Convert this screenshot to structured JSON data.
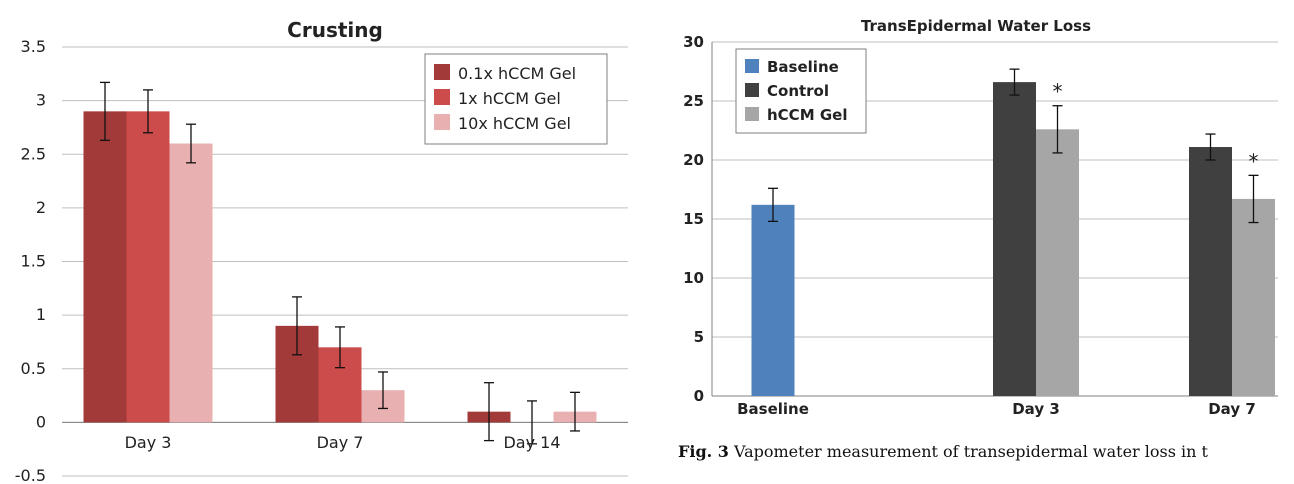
{
  "chart_data": [
    {
      "type": "bar",
      "title": "Crusting",
      "categories": [
        "Day 3",
        "Day 7",
        "Day 14"
      ],
      "ylim": [
        -0.5,
        3.5
      ],
      "yticks": [
        "3.5",
        "3",
        "2.5",
        "2",
        "1.5",
        "1",
        "0.5",
        "0",
        "-0.5"
      ],
      "legend_position": "top-right",
      "grid": true,
      "series": [
        {
          "name": "0.1x hCCM Gel",
          "color": "#a33a3a",
          "values": [
            2.9,
            0.9,
            0.1
          ],
          "errors": [
            0.27,
            0.27,
            0.27
          ]
        },
        {
          "name": "1x hCCM Gel",
          "color": "#cc4b4b",
          "values": [
            2.9,
            0.7,
            0.0
          ],
          "errors": [
            0.2,
            0.19,
            0.2
          ]
        },
        {
          "name": "10x hCCM Gel",
          "color": "#e8b0b0",
          "values": [
            2.6,
            0.3,
            0.1
          ],
          "errors": [
            0.18,
            0.17,
            0.18
          ]
        }
      ]
    },
    {
      "type": "bar",
      "title": "TransEpidermal Water Loss",
      "categories": [
        "Baseline",
        "Day 3",
        "Day 7"
      ],
      "ylim": [
        0,
        30
      ],
      "yticks": [
        "30",
        "25",
        "20",
        "15",
        "10",
        "5",
        "0"
      ],
      "legend_position": "top-left",
      "grid": true,
      "series": [
        {
          "name": "Baseline",
          "color": "#4f81bd",
          "values": [
            16.2,
            null,
            null
          ],
          "errors": [
            1.4,
            null,
            null
          ]
        },
        {
          "name": "Control",
          "color": "#404040",
          "values": [
            null,
            26.6,
            21.1
          ],
          "errors": [
            null,
            1.1,
            1.1
          ]
        },
        {
          "name": "hCCM Gel",
          "color": "#a6a6a6",
          "values": [
            null,
            22.6,
            16.7
          ],
          "errors": [
            null,
            2.0,
            2.0
          ]
        }
      ],
      "annotations": [
        {
          "text": "*",
          "category": "Day 3",
          "series": "hCCM Gel"
        },
        {
          "text": "*",
          "category": "Day 7",
          "series": "hCCM Gel"
        }
      ]
    }
  ],
  "caption": {
    "figure_label": "Fig. 3",
    "text": "Vapometer measurement of transepidermal water loss in t"
  }
}
